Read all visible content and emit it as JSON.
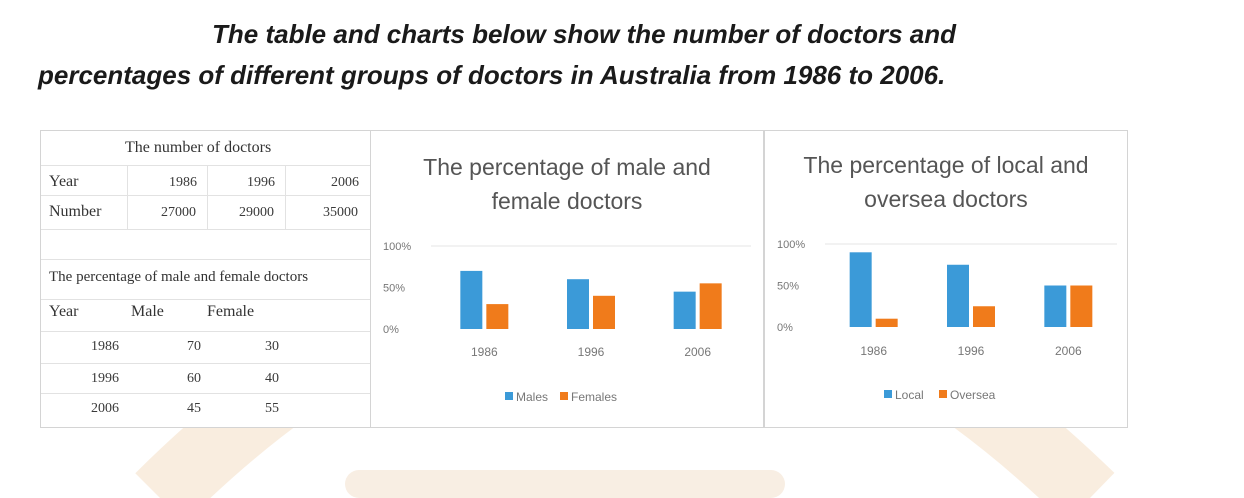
{
  "heading": {
    "line1": "The table and charts below show the number of doctors and",
    "line2": "percentages of different groups of doctors in Australia from 1986 to 2006."
  },
  "table": {
    "number_title": "The number of doctors",
    "year_label": "Year",
    "number_label": "Number",
    "years": [
      "1986",
      "1996",
      "2006"
    ],
    "numbers": [
      "27000",
      "29000",
      "35000"
    ],
    "pct_title": "The percentage of male and female doctors",
    "pct_headers": [
      "Year",
      "Male",
      "Female"
    ],
    "pct_rows": [
      [
        "1986",
        "70",
        "30"
      ],
      [
        "1996",
        "60",
        "40"
      ],
      [
        "2006",
        "45",
        "55"
      ]
    ]
  },
  "colors": {
    "blue": "#3b9ad8",
    "orange": "#f07b1b",
    "watermark": "#f5e2cc"
  },
  "chart_data": [
    {
      "type": "bar",
      "title_line1": "The percentage of male and",
      "title_line2": "female doctors",
      "categories": [
        "1986",
        "1996",
        "2006"
      ],
      "series": [
        {
          "name": "Males",
          "values": [
            70,
            60,
            45
          ]
        },
        {
          "name": "Females",
          "values": [
            30,
            40,
            55
          ]
        }
      ],
      "yticks": [
        "100%",
        "50%",
        "0%"
      ],
      "ylim": [
        0,
        100
      ],
      "legend": "bottom",
      "grid": false
    },
    {
      "type": "bar",
      "title_line1": "The percentage of local and",
      "title_line2": "oversea doctors",
      "categories": [
        "1986",
        "1996",
        "2006"
      ],
      "series": [
        {
          "name": "Local",
          "values": [
            90,
            75,
            50
          ]
        },
        {
          "name": "Oversea",
          "values": [
            10,
            25,
            50
          ]
        }
      ],
      "yticks": [
        "100%",
        "50%",
        "0%"
      ],
      "ylim": [
        0,
        100
      ],
      "legend": "bottom",
      "grid": false
    }
  ]
}
